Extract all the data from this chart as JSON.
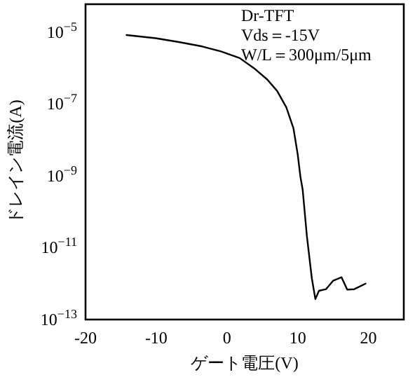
{
  "chart_data": {
    "type": "line",
    "xlabel": "ゲート電圧(V)",
    "ylabel": "ドレイン電流(A)",
    "log": "y",
    "annotations": [
      "Dr-TFT",
      "Vds＝-15V",
      "W/L＝300μm/5μm"
    ],
    "xlim": [
      -20,
      25
    ],
    "xticks": [
      -20,
      -10,
      0,
      10,
      20
    ],
    "ylim": [
      1e-13,
      6e-05
    ],
    "yticks": [
      {
        "value": 1e-13,
        "label": "10$^{−13}$"
      },
      {
        "value": 1e-11,
        "label": "10$^{−11}$"
      },
      {
        "value": 1e-09,
        "label": "10$^{−9}$"
      },
      {
        "value": 1e-07,
        "label": "10$^{−7}$"
      },
      {
        "value": 1e-05,
        "label": "10$^{−5}$"
      }
    ],
    "grid": false,
    "marker": "none",
    "line_style": "solid",
    "series": [
      {
        "color": "#000000",
        "x": [
          -14.2,
          -10.1,
          -6.8,
          -3.5,
          -0.85,
          1.8,
          3.8,
          5.7,
          7.1,
          8.4,
          9.4,
          10.0,
          10.4,
          10.7,
          11.3,
          12.0,
          12.5,
          13.0,
          14.0,
          15.0,
          16.2,
          17.0,
          18.0,
          19.6
        ],
        "values": [
          8.3e-06,
          6.8e-06,
          5.3e-06,
          4e-06,
          2.9e-06,
          1.9e-06,
          1e-06,
          4.8e-07,
          2.3e-07,
          8e-08,
          2.1e-08,
          4e-09,
          9e-10,
          4.2e-10,
          2.1e-11,
          1.4e-12,
          3.7e-13,
          6.3e-13,
          7e-13,
          1.2e-12,
          1.5e-12,
          6.8e-13,
          7e-13,
          1e-12
        ]
      }
    ]
  }
}
